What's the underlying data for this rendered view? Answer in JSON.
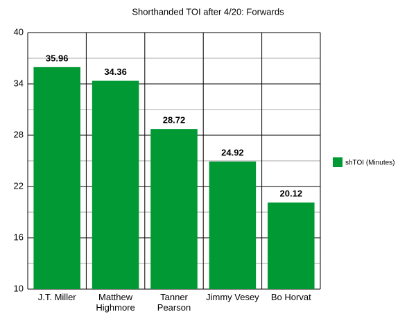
{
  "chart_data": {
    "type": "bar",
    "title": "Shorthanded TOI after 4/20: Forwards",
    "categories": [
      "J.T. Miller",
      "Matthew Highmore",
      "Tanner Pearson",
      "Jimmy Vesey",
      "Bo Horvat"
    ],
    "series": [
      {
        "name": "shTOI (Minutes)",
        "color": "#009933",
        "values": [
          35.96,
          34.36,
          28.72,
          24.92,
          20.12
        ]
      }
    ],
    "ylim": [
      10,
      40
    ],
    "yticks": [
      10,
      16,
      22,
      28,
      34,
      40
    ],
    "minor_yticks": [
      13,
      19,
      25,
      31,
      37
    ],
    "grid": true,
    "legend": "right",
    "value_labels": true
  }
}
